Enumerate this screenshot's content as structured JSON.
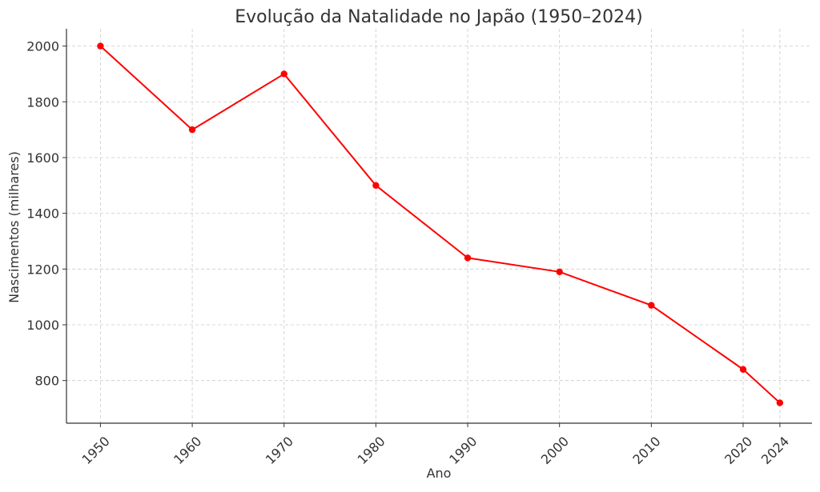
{
  "chart_data": {
    "type": "line",
    "title": "Evolução da Natalidade no Japão (1950–2024)",
    "xlabel": "Ano",
    "ylabel": "Nascimentos (milhares)",
    "x": [
      1950,
      1960,
      1970,
      1980,
      1990,
      2000,
      2010,
      2020,
      2024
    ],
    "x_tick_labels": [
      "1950",
      "1960",
      "1970",
      "1980",
      "1990",
      "2000",
      "2010",
      "2020",
      "2024"
    ],
    "y_ticks": [
      800,
      1000,
      1200,
      1400,
      1600,
      1800,
      2000
    ],
    "xlim": [
      1946.3,
      2027.5
    ],
    "ylim": [
      647,
      2062
    ],
    "grid": true,
    "series": [
      {
        "values": [
          2000,
          1700,
          1900,
          1500,
          1240,
          1190,
          1070,
          840,
          720
        ],
        "color": "#ff0000",
        "marker": "circle"
      }
    ]
  }
}
